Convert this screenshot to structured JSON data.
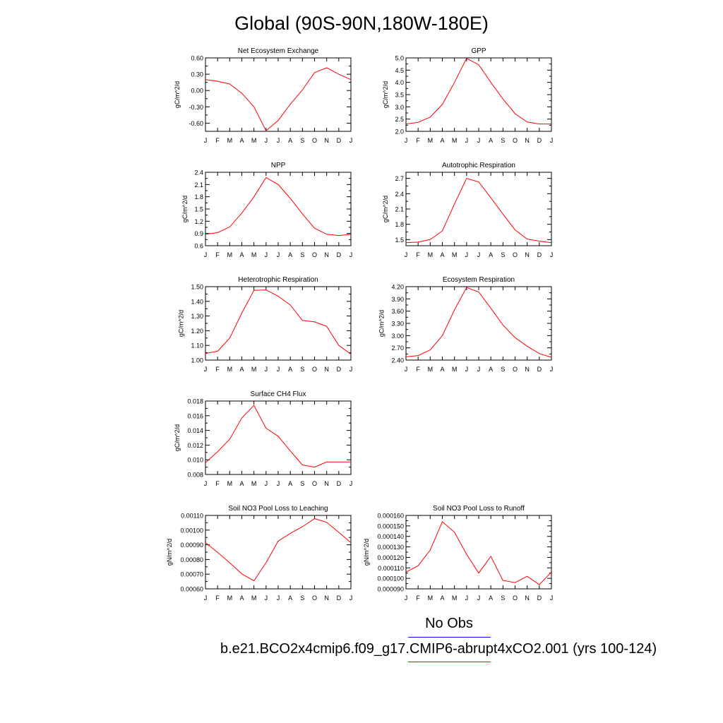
{
  "title": "Global (90S-90N,180W-180E)",
  "colors": {
    "series": "#ff0000",
    "obs_line": "#0000ff",
    "model_line": "#ff0000",
    "axis": "#000000"
  },
  "legend": {
    "obs_label": "No Obs",
    "model_label": "b.e21.BCO2x4cmip6.f09_g17.CMIP6-abrupt4xCO2.001 (yrs 100-124)"
  },
  "chart_data": [
    {
      "type": "line",
      "title": "Net Ecosystem Exchange",
      "ylabel": "gC/m^2/d",
      "xlabel": "",
      "x": [
        "J",
        "F",
        "M",
        "A",
        "M",
        "J",
        "J",
        "A",
        "S",
        "O",
        "N",
        "D",
        "J"
      ],
      "ylim": [
        -0.75,
        0.6
      ],
      "yticks": [
        "0.60",
        "0.30",
        "0.00",
        "-0.30",
        "-0.60"
      ],
      "ytick_values": [
        0.6,
        0.3,
        0.0,
        -0.3,
        -0.6
      ],
      "series": [
        {
          "values": [
            0.2,
            0.17,
            0.12,
            -0.05,
            -0.3,
            -0.74,
            -0.55,
            -0.25,
            0.01,
            0.33,
            0.42,
            0.3,
            0.2
          ]
        }
      ]
    },
    {
      "type": "line",
      "title": "GPP",
      "ylabel": "gC/m^2/d",
      "xlabel": "",
      "x": [
        "J",
        "F",
        "M",
        "A",
        "M",
        "J",
        "J",
        "A",
        "S",
        "O",
        "N",
        "D",
        "J"
      ],
      "ylim": [
        2.0,
        5.0
      ],
      "yticks": [
        "5.0",
        "4.5",
        "4.0",
        "3.5",
        "3.0",
        "2.5",
        "2.0"
      ],
      "ytick_values": [
        5.0,
        4.5,
        4.0,
        3.5,
        3.0,
        2.5,
        2.0
      ],
      "series": [
        {
          "values": [
            2.3,
            2.37,
            2.58,
            3.1,
            4.0,
            4.98,
            4.72,
            4.0,
            3.32,
            2.72,
            2.38,
            2.3,
            2.3
          ]
        }
      ]
    },
    {
      "type": "line",
      "title": "NPP",
      "ylabel": "gC/m^2/d",
      "xlabel": "",
      "x": [
        "J",
        "F",
        "M",
        "A",
        "M",
        "J",
        "J",
        "A",
        "S",
        "O",
        "N",
        "D",
        "J"
      ],
      "ylim": [
        0.6,
        2.4
      ],
      "yticks": [
        "2.4",
        "2.1",
        "1.8",
        "1.5",
        "1.2",
        "0.9",
        "0.6"
      ],
      "ytick_values": [
        2.4,
        2.1,
        1.8,
        1.5,
        1.2,
        0.9,
        0.6
      ],
      "series": [
        {
          "values": [
            0.88,
            0.92,
            1.06,
            1.4,
            1.8,
            2.27,
            2.1,
            1.76,
            1.38,
            1.03,
            0.88,
            0.85,
            0.88
          ]
        }
      ]
    },
    {
      "type": "line",
      "title": "Autotrophic Respiration",
      "ylabel": "gC/m^2/d",
      "xlabel": "",
      "x": [
        "J",
        "F",
        "M",
        "A",
        "M",
        "J",
        "J",
        "A",
        "S",
        "O",
        "N",
        "D",
        "J"
      ],
      "ylim": [
        1.38,
        2.82
      ],
      "yticks": [
        "2.7",
        "2.4",
        "2.1",
        "1.8",
        "1.5"
      ],
      "ytick_values": [
        2.7,
        2.4,
        2.1,
        1.8,
        1.5
      ],
      "series": [
        {
          "values": [
            1.44,
            1.45,
            1.5,
            1.67,
            2.2,
            2.7,
            2.63,
            2.32,
            2.0,
            1.69,
            1.51,
            1.47,
            1.44
          ]
        }
      ]
    },
    {
      "type": "line",
      "title": "Heterotrophic Respiration",
      "ylabel": "gC/m^2/d",
      "xlabel": "",
      "x": [
        "J",
        "F",
        "M",
        "A",
        "M",
        "J",
        "J",
        "A",
        "S",
        "O",
        "N",
        "D",
        "J"
      ],
      "ylim": [
        1.0,
        1.5
      ],
      "yticks": [
        "1.50",
        "1.40",
        "1.30",
        "1.20",
        "1.10",
        "1.00"
      ],
      "ytick_values": [
        1.5,
        1.4,
        1.3,
        1.2,
        1.1,
        1.0
      ],
      "series": [
        {
          "values": [
            1.045,
            1.06,
            1.15,
            1.32,
            1.475,
            1.478,
            1.435,
            1.375,
            1.27,
            1.26,
            1.23,
            1.1,
            1.04
          ]
        }
      ]
    },
    {
      "type": "line",
      "title": "Ecosystem Respiration",
      "ylabel": "gC/m^2/d",
      "xlabel": "",
      "x": [
        "J",
        "F",
        "M",
        "A",
        "M",
        "J",
        "J",
        "A",
        "S",
        "O",
        "N",
        "D",
        "J"
      ],
      "ylim": [
        2.4,
        4.2
      ],
      "yticks": [
        "4.20",
        "3.90",
        "3.60",
        "3.30",
        "3.00",
        "2.70",
        "2.40"
      ],
      "ytick_values": [
        4.2,
        3.9,
        3.6,
        3.3,
        3.0,
        2.7,
        2.4
      ],
      "series": [
        {
          "values": [
            2.48,
            2.51,
            2.65,
            3.0,
            3.63,
            4.18,
            4.07,
            3.67,
            3.26,
            2.95,
            2.74,
            2.56,
            2.47
          ]
        }
      ]
    },
    {
      "type": "line",
      "title": "Surface CH4 Flux",
      "ylabel": "gC/m^2/d",
      "xlabel": "",
      "x": [
        "J",
        "F",
        "M",
        "A",
        "M",
        "J",
        "J",
        "A",
        "S",
        "O",
        "N",
        "D",
        "J"
      ],
      "ylim": [
        0.008,
        0.018
      ],
      "yticks": [
        "0.018",
        "0.016",
        "0.014",
        "0.012",
        "0.010",
        "0.008"
      ],
      "ytick_values": [
        0.018,
        0.016,
        0.014,
        0.012,
        0.01,
        0.008
      ],
      "series": [
        {
          "values": [
            0.0096,
            0.0111,
            0.0128,
            0.0157,
            0.0174,
            0.0143,
            0.0132,
            0.0112,
            0.0093,
            0.009,
            0.0097,
            0.0097,
            0.0097
          ]
        }
      ]
    },
    {
      "type": "line",
      "title": "Soil NO3 Pool Loss to Leaching",
      "ylabel": "gN/m^2/d",
      "xlabel": "",
      "x": [
        "J",
        "F",
        "M",
        "A",
        "M",
        "J",
        "J",
        "A",
        "S",
        "O",
        "N",
        "D",
        "J"
      ],
      "ylim": [
        0.0006,
        0.0011
      ],
      "yticks": [
        "0.00110",
        "0.00100",
        "0.00090",
        "0.00080",
        "0.00070",
        "0.00060"
      ],
      "ytick_values": [
        0.0011,
        0.001,
        0.0009,
        0.0008,
        0.0007,
        0.0006
      ],
      "series": [
        {
          "values": [
            0.000915,
            0.000848,
            0.000778,
            0.000702,
            0.000655,
            0.000778,
            0.000925,
            0.000978,
            0.001023,
            0.001078,
            0.001053,
            0.000985,
            0.000915
          ]
        }
      ]
    },
    {
      "type": "line",
      "title": "Soil NO3 Pool Loss to Runoff",
      "ylabel": "gN/m^2/d",
      "xlabel": "",
      "x": [
        "J",
        "F",
        "M",
        "A",
        "M",
        "J",
        "J",
        "A",
        "S",
        "O",
        "N",
        "D",
        "J"
      ],
      "ylim": [
        9e-05,
        0.00016
      ],
      "yticks": [
        "0.000160",
        "0.000150",
        "0.000140",
        "0.000130",
        "0.000120",
        "0.000110",
        "0.000100",
        "0.000090"
      ],
      "ytick_values": [
        0.00016,
        0.00015,
        0.00014,
        0.00013,
        0.00012,
        0.00011,
        0.0001,
        9e-05
      ],
      "series": [
        {
          "values": [
            0.000106,
            0.000112,
            0.000127,
            0.000154,
            0.000144,
            0.000123,
            0.000105,
            0.000121,
            9.8e-05,
            9.6e-05,
            0.000102,
            9.4e-05,
            0.000106
          ]
        }
      ]
    }
  ]
}
